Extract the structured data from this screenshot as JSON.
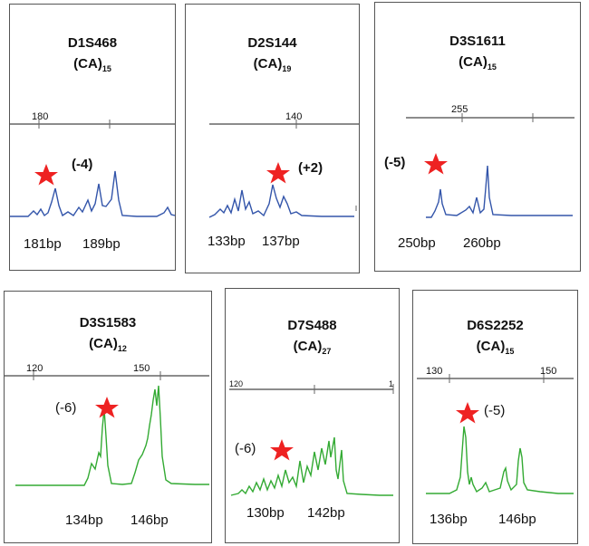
{
  "panels": [
    {
      "id": "D1S468",
      "name": "D1S468",
      "repeat": "(CA)",
      "repeat_n": "15",
      "tick1": "180",
      "tick2": "",
      "shift": "(-4)",
      "sizes": [
        "181bp",
        "189bp"
      ],
      "color": "#3355aa"
    },
    {
      "id": "D2S144",
      "name": "D2S144",
      "repeat": "(CA)",
      "repeat_n": "19",
      "tick1": "140",
      "tick2": "",
      "shift": "(+2)",
      "sizes": [
        "133bp",
        "137bp"
      ],
      "color": "#3355aa"
    },
    {
      "id": "D3S1611",
      "name": "D3S1611",
      "repeat": "(CA)",
      "repeat_n": "15",
      "tick1": "255",
      "tick2": "",
      "shift": "(-5)",
      "sizes": [
        "250bp",
        "260bp"
      ],
      "color": "#3355aa"
    },
    {
      "id": "D3S1583",
      "name": "D3S1583",
      "repeat": "(CA)",
      "repeat_n": "12",
      "tick1": "120",
      "tick2": "150",
      "shift": "(-6)",
      "sizes": [
        "134bp",
        "146bp"
      ],
      "color": "#33aa33"
    },
    {
      "id": "D7S488",
      "name": "D7S488",
      "repeat": "(CA)",
      "repeat_n": "27",
      "tick1": "120",
      "tick2": "1",
      "shift": "(-6)",
      "sizes": [
        "130bp",
        "142bp"
      ],
      "color": "#33aa33"
    },
    {
      "id": "D6S2252",
      "name": "D6S2252",
      "repeat": "(CA)",
      "repeat_n": "15",
      "tick1": "130",
      "tick2": "150",
      "shift": "(-5)",
      "sizes": [
        "136bp",
        "146bp"
      ],
      "color": "#33aa33"
    }
  ],
  "colors": {
    "star": "#ee2222",
    "axis": "#666666",
    "blue_trace": "#3355aa",
    "green_trace": "#33aa33"
  },
  "icons": {
    "marker": "star-icon"
  }
}
